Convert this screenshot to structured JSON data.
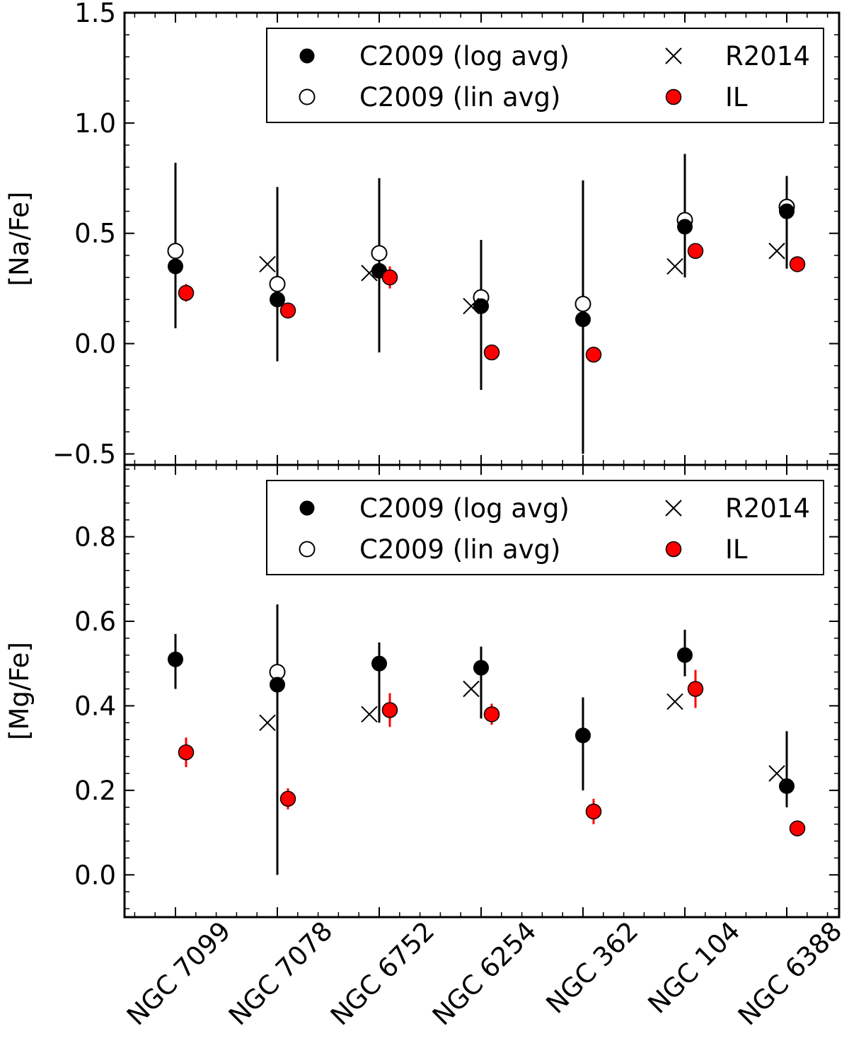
{
  "chart_data": [
    {
      "type": "scatter",
      "title": "",
      "xlabel": "",
      "ylabel": "[Na/Fe]",
      "ylim": [
        -0.55,
        1.5
      ],
      "yticks": [
        -0.5,
        0.0,
        0.5,
        1.0,
        1.5
      ],
      "ytick_labels": [
        "−0.5",
        "0.0",
        "0.5",
        "1.0",
        "1.5"
      ],
      "categories": [
        "NGC 7099",
        "NGC 7078",
        "NGC 6752",
        "NGC 6254",
        "NGC 362",
        "NGC 104",
        "NGC 6388"
      ],
      "series": [
        {
          "name": "C2009 (log avg)",
          "marker": "filled-circle",
          "color": "#000000",
          "values": [
            0.35,
            0.2,
            0.33,
            0.17,
            0.11,
            0.53,
            0.6
          ],
          "err_low": [
            0.07,
            -0.08,
            -0.04,
            -0.21,
            -0.5,
            0.3,
            0.34
          ],
          "err_high": [
            0.82,
            0.71,
            0.75,
            0.47,
            0.74,
            0.86,
            0.76
          ]
        },
        {
          "name": "C2009 (lin avg)",
          "marker": "open-circle",
          "color": "#000000",
          "values": [
            0.42,
            0.27,
            0.41,
            0.21,
            0.18,
            0.56,
            0.62
          ]
        },
        {
          "name": "R2014",
          "marker": "x",
          "color": "#000000",
          "values": [
            null,
            0.36,
            0.32,
            0.17,
            null,
            0.35,
            0.42
          ]
        },
        {
          "name": "IL",
          "marker": "filled-circle",
          "color": "#ff0000",
          "values": [
            0.23,
            0.15,
            0.3,
            -0.04,
            -0.05,
            0.42,
            0.36
          ],
          "err": [
            0.04,
            0.02,
            0.05,
            0.01,
            0.01,
            0.01,
            0.01
          ]
        }
      ],
      "legend": {
        "position": "top-right",
        "labels": [
          "C2009 (log avg)",
          "C2009 (lin avg)",
          "R2014",
          "IL"
        ]
      }
    },
    {
      "type": "scatter",
      "title": "",
      "xlabel": "",
      "ylabel": "[Mg/Fe]",
      "ylim": [
        -0.1,
        0.97
      ],
      "yticks": [
        0.0,
        0.2,
        0.4,
        0.6,
        0.8
      ],
      "ytick_labels": [
        "0.0",
        "0.2",
        "0.4",
        "0.6",
        "0.8"
      ],
      "categories": [
        "NGC 7099",
        "NGC 7078",
        "NGC 6752",
        "NGC 6254",
        "NGC 362",
        "NGC 104",
        "NGC 6388"
      ],
      "series": [
        {
          "name": "C2009 (log avg)",
          "marker": "filled-circle",
          "color": "#000000",
          "values": [
            0.51,
            0.45,
            0.5,
            0.49,
            0.33,
            0.52,
            0.21
          ],
          "err_low": [
            0.44,
            0.0,
            0.36,
            0.37,
            0.2,
            0.47,
            0.16
          ],
          "err_high": [
            0.57,
            0.64,
            0.55,
            0.54,
            0.42,
            0.58,
            0.34
          ]
        },
        {
          "name": "C2009 (lin avg)",
          "marker": "open-circle",
          "color": "#000000",
          "values": [
            null,
            0.48,
            null,
            null,
            null,
            null,
            null
          ]
        },
        {
          "name": "R2014",
          "marker": "x",
          "color": "#000000",
          "values": [
            null,
            0.36,
            0.38,
            0.44,
            null,
            0.41,
            0.24
          ]
        },
        {
          "name": "IL",
          "marker": "filled-circle",
          "color": "#ff0000",
          "values": [
            0.29,
            0.18,
            0.39,
            0.38,
            0.15,
            0.44,
            0.11
          ],
          "err": [
            0.035,
            0.025,
            0.04,
            0.025,
            0.03,
            0.045,
            0.01
          ]
        }
      ],
      "legend": {
        "position": "top-right",
        "labels": [
          "C2009 (log avg)",
          "C2009 (lin avg)",
          "R2014",
          "IL"
        ]
      }
    }
  ]
}
